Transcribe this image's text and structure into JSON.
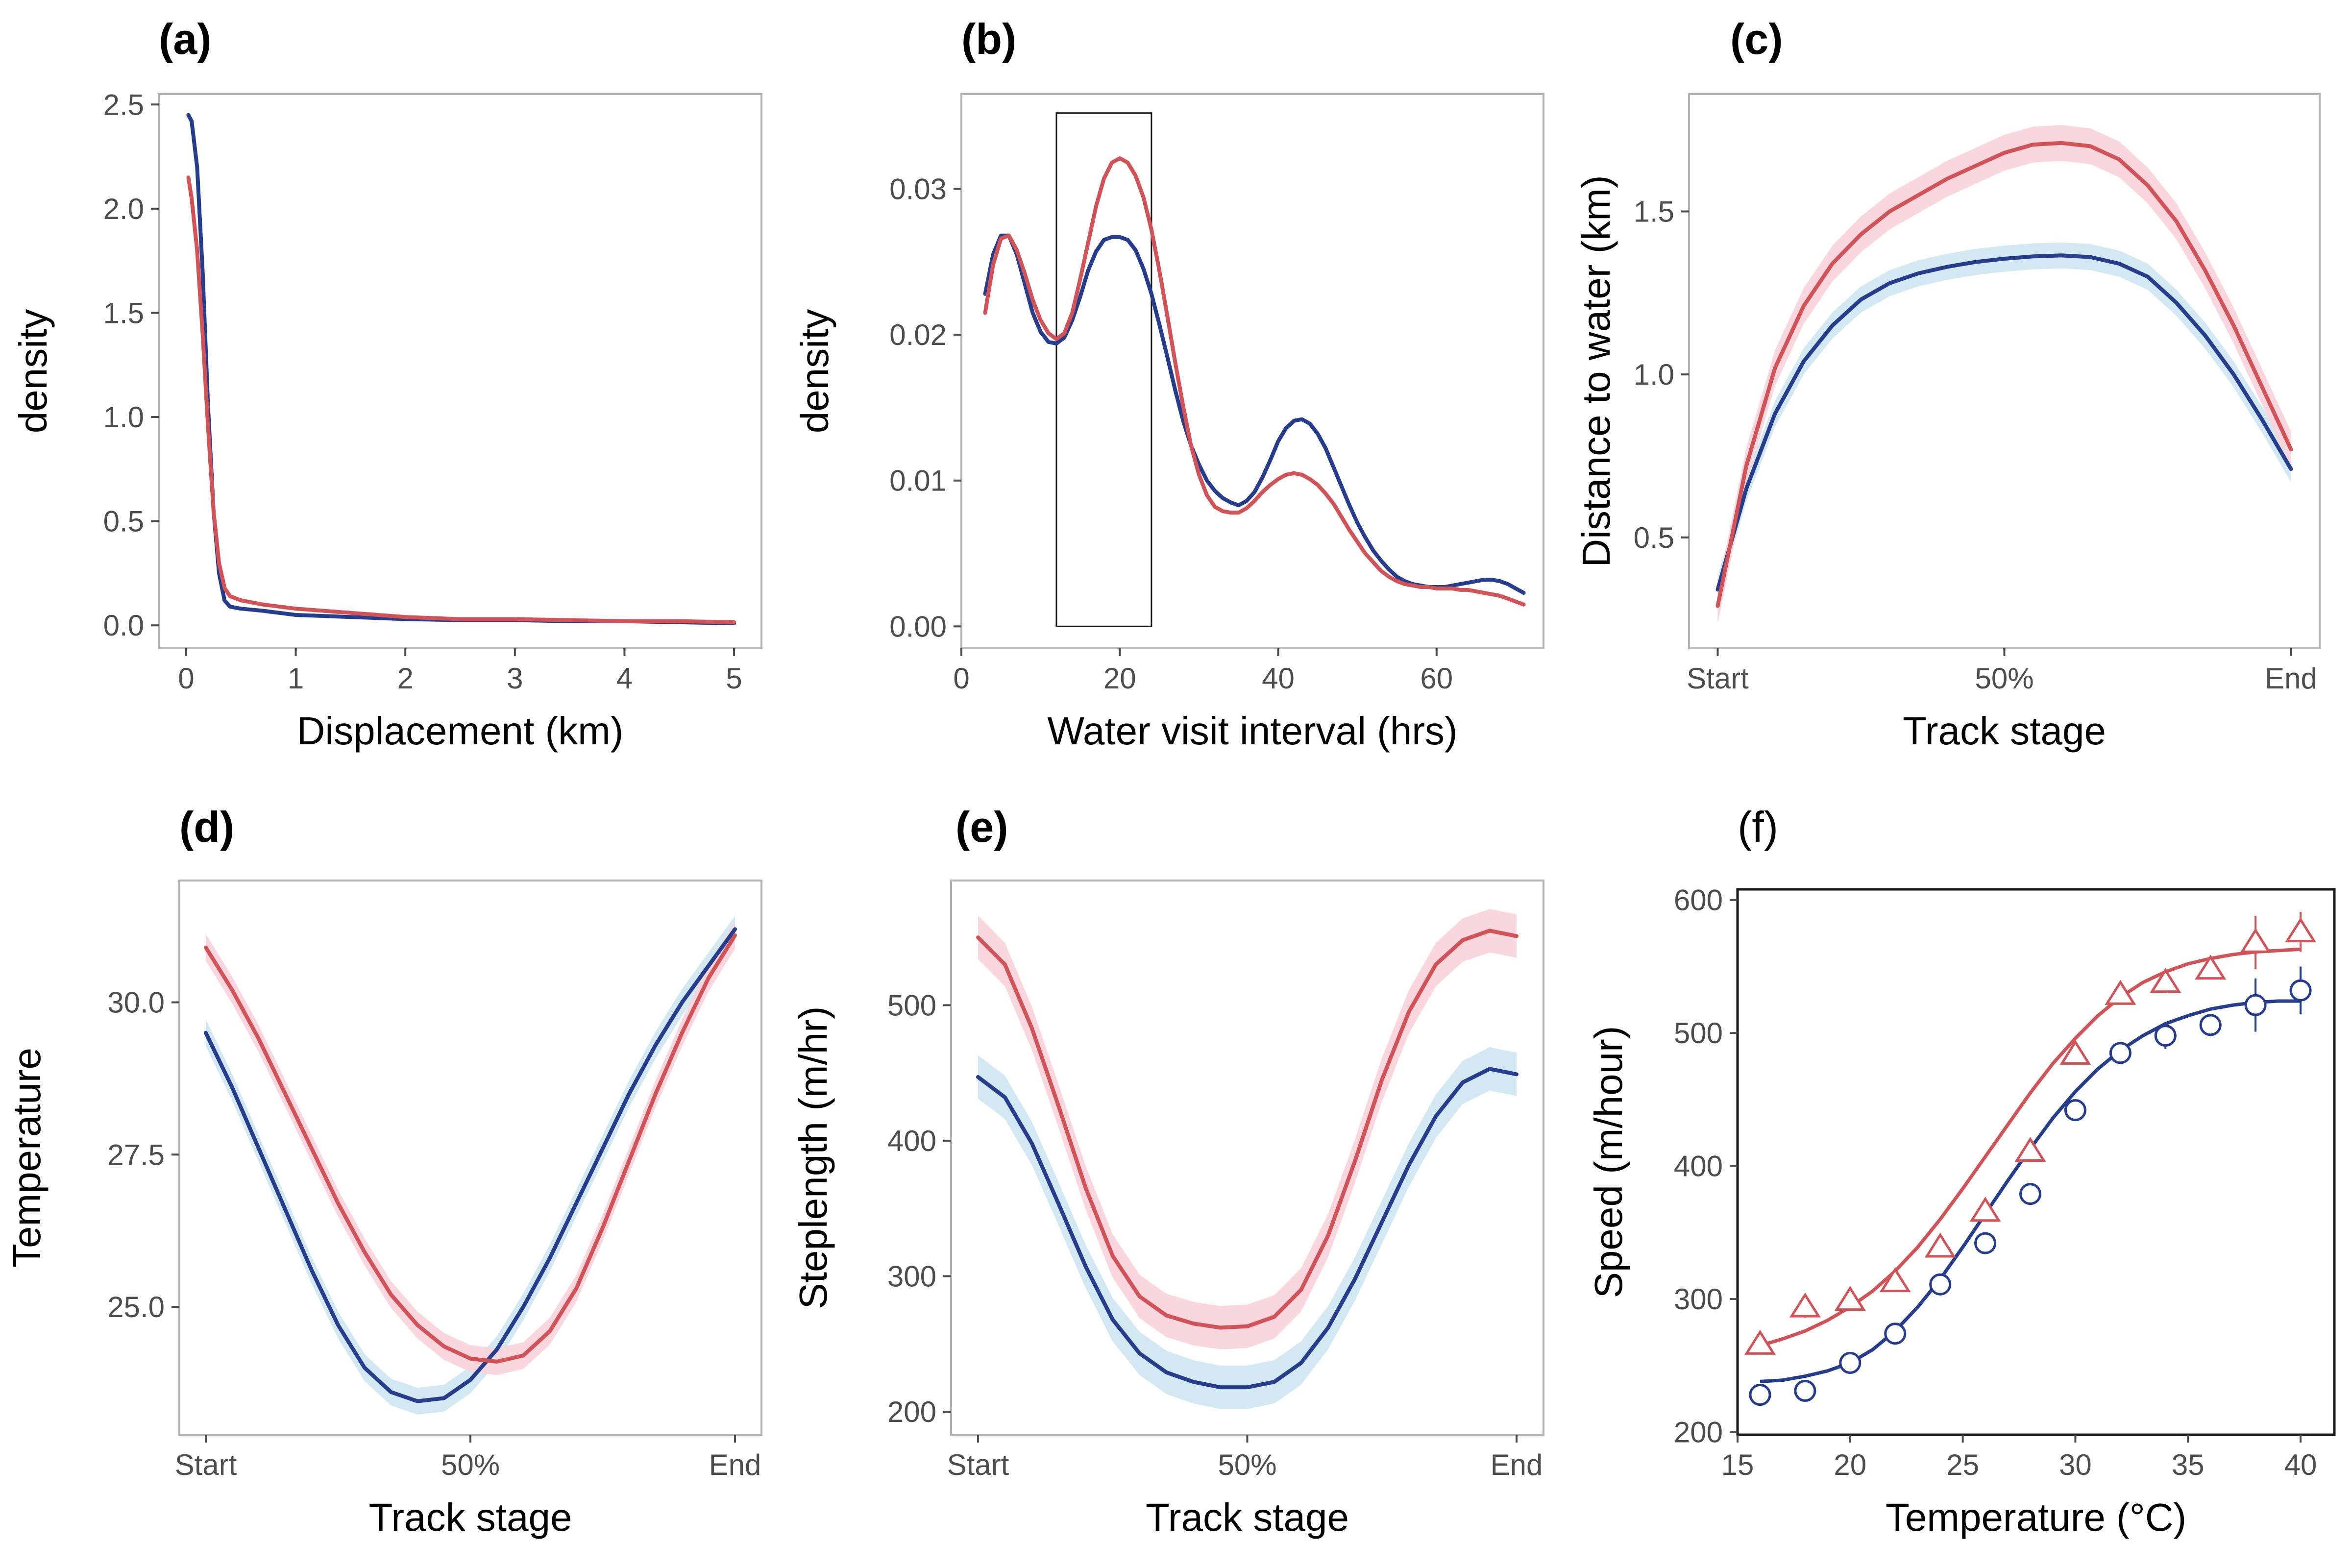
{
  "colors": {
    "blue": "#253d8c",
    "red": "#d25357",
    "blue_band": "#cde7f3",
    "red_band": "#fad3da"
  },
  "chart_data": [
    {
      "id": "a",
      "panel_label": "(a)",
      "type": "line",
      "xlabel": "Displacement (km)",
      "ylabel": "density",
      "xlim": [
        -0.25,
        5.25
      ],
      "ylim": [
        -0.11,
        2.55
      ],
      "xticks": [
        0,
        1,
        2,
        3,
        4,
        5
      ],
      "xtick_labels": [
        "0",
        "1",
        "2",
        "3",
        "4",
        "5"
      ],
      "yticks": [
        0,
        0.5,
        1,
        1.5,
        2,
        2.5
      ],
      "ytick_labels": [
        "0.0",
        "0.5",
        "1.0",
        "1.5",
        "2.0",
        "2.5"
      ],
      "series": [
        {
          "color": "blue",
          "x": [
            0.02,
            0.05,
            0.1,
            0.15,
            0.2,
            0.25,
            0.3,
            0.35,
            0.4,
            0.5,
            0.7,
            1.0,
            1.5,
            2.0,
            2.5,
            3.0,
            3.5,
            4.0,
            4.5,
            5.0
          ],
          "y": [
            2.45,
            2.42,
            2.2,
            1.7,
            1.05,
            0.55,
            0.25,
            0.12,
            0.09,
            0.08,
            0.07,
            0.05,
            0.04,
            0.03,
            0.025,
            0.025,
            0.02,
            0.02,
            0.015,
            0.01
          ]
        },
        {
          "color": "red",
          "x": [
            0.02,
            0.05,
            0.1,
            0.15,
            0.2,
            0.25,
            0.3,
            0.35,
            0.4,
            0.5,
            0.7,
            1.0,
            1.5,
            2.0,
            2.5,
            3.0,
            3.5,
            4.0,
            4.5,
            5.0
          ],
          "y": [
            2.15,
            2.05,
            1.8,
            1.4,
            0.95,
            0.55,
            0.3,
            0.18,
            0.14,
            0.12,
            0.1,
            0.08,
            0.06,
            0.04,
            0.03,
            0.03,
            0.025,
            0.02,
            0.02,
            0.015
          ]
        }
      ]
    },
    {
      "id": "b",
      "panel_label": "(b)",
      "type": "line",
      "xlabel": "Water visit interval (hrs)",
      "ylabel": "density",
      "xlim": [
        0,
        73.5
      ],
      "ylim": [
        -0.0015,
        0.0365
      ],
      "xticks": [
        0,
        20,
        40,
        60
      ],
      "xtick_labels": [
        "0",
        "20",
        "40",
        "60"
      ],
      "yticks": [
        0,
        0.01,
        0.02,
        0.03
      ],
      "ytick_labels": [
        "0.00",
        "0.01",
        "0.02",
        "0.03"
      ],
      "highlight_box": {
        "x": [
          12,
          24
        ],
        "y": [
          0,
          0.0352
        ]
      },
      "series": [
        {
          "color": "blue",
          "x": [
            3,
            4,
            5,
            6,
            7,
            8,
            9,
            10,
            11,
            12,
            13,
            14,
            15,
            16,
            17,
            18,
            19,
            20,
            21,
            22,
            23,
            24,
            25,
            26,
            27,
            28,
            29,
            30,
            31,
            32,
            33,
            34,
            35,
            36,
            37,
            38,
            39,
            40,
            41,
            42,
            43,
            44,
            45,
            46,
            47,
            48,
            49,
            50,
            51,
            52,
            53,
            54,
            55,
            56,
            57,
            58,
            59,
            60,
            61,
            62,
            63,
            64,
            65,
            66,
            67,
            68,
            69,
            70,
            71
          ],
          "y": [
            0.0228,
            0.0255,
            0.0268,
            0.0268,
            0.0255,
            0.0235,
            0.0215,
            0.0202,
            0.0195,
            0.0194,
            0.0198,
            0.021,
            0.0226,
            0.0244,
            0.0257,
            0.0265,
            0.0267,
            0.0267,
            0.0265,
            0.0258,
            0.0245,
            0.0228,
            0.0207,
            0.0185,
            0.0162,
            0.0141,
            0.0124,
            0.0111,
            0.01,
            0.0093,
            0.0088,
            0.0085,
            0.0083,
            0.0086,
            0.0092,
            0.0102,
            0.0114,
            0.0127,
            0.0136,
            0.0141,
            0.0142,
            0.0139,
            0.0132,
            0.0122,
            0.0109,
            0.0096,
            0.0083,
            0.0071,
            0.0061,
            0.0052,
            0.0045,
            0.0039,
            0.0034,
            0.0031,
            0.0029,
            0.0028,
            0.0027,
            0.0027,
            0.0027,
            0.0028,
            0.0029,
            0.003,
            0.0031,
            0.0032,
            0.0032,
            0.0031,
            0.0029,
            0.0026,
            0.0023
          ]
        },
        {
          "color": "red",
          "x": [
            3,
            4,
            5,
            6,
            7,
            8,
            9,
            10,
            11,
            12,
            13,
            14,
            15,
            16,
            17,
            18,
            19,
            20,
            21,
            22,
            23,
            24,
            25,
            26,
            27,
            28,
            29,
            30,
            31,
            32,
            33,
            34,
            35,
            36,
            37,
            38,
            39,
            40,
            41,
            42,
            43,
            44,
            45,
            46,
            47,
            48,
            49,
            50,
            51,
            52,
            53,
            54,
            55,
            56,
            57,
            58,
            59,
            60,
            61,
            62,
            63,
            64,
            65,
            66,
            67,
            68,
            69,
            70,
            71
          ],
          "y": [
            0.0215,
            0.0248,
            0.0266,
            0.0268,
            0.0258,
            0.0242,
            0.0224,
            0.021,
            0.0201,
            0.0197,
            0.0201,
            0.0215,
            0.0238,
            0.0263,
            0.0288,
            0.0307,
            0.0318,
            0.0321,
            0.0318,
            0.0309,
            0.0294,
            0.0272,
            0.0244,
            0.0213,
            0.0181,
            0.0151,
            0.0124,
            0.0104,
            0.009,
            0.0082,
            0.0079,
            0.0078,
            0.0078,
            0.0081,
            0.0086,
            0.0092,
            0.0097,
            0.0101,
            0.0104,
            0.0105,
            0.0104,
            0.0101,
            0.0097,
            0.0091,
            0.0084,
            0.0075,
            0.0066,
            0.0058,
            0.005,
            0.0044,
            0.0038,
            0.0034,
            0.0031,
            0.0029,
            0.0028,
            0.0027,
            0.0027,
            0.0026,
            0.0026,
            0.0026,
            0.0025,
            0.0025,
            0.0024,
            0.0023,
            0.0022,
            0.0021,
            0.0019,
            0.0017,
            0.0015
          ]
        }
      ]
    },
    {
      "id": "c",
      "panel_label": "(c)",
      "type": "line",
      "xlabel": "Track stage",
      "ylabel": "Distance to water (km)",
      "xlim": [
        -0.05,
        1.05
      ],
      "ylim": [
        0.16,
        1.86
      ],
      "xticks": [
        0,
        0.5,
        1
      ],
      "xtick_labels": [
        "Start",
        "50%",
        "End"
      ],
      "yticks": [
        0.5,
        1.0,
        1.5
      ],
      "ytick_labels": [
        "0.5",
        "1.0",
        "1.5"
      ],
      "series": [
        {
          "color": "blue",
          "band_color": "blue_band",
          "band_halfwidth": 0.04,
          "x": [
            0,
            0.05,
            0.1,
            0.15,
            0.2,
            0.25,
            0.3,
            0.35,
            0.4,
            0.45,
            0.5,
            0.55,
            0.6,
            0.65,
            0.7,
            0.75,
            0.8,
            0.85,
            0.9,
            0.95,
            1.0
          ],
          "y": [
            0.34,
            0.65,
            0.88,
            1.04,
            1.15,
            1.23,
            1.28,
            1.31,
            1.33,
            1.345,
            1.355,
            1.362,
            1.365,
            1.36,
            1.34,
            1.3,
            1.22,
            1.12,
            1.0,
            0.86,
            0.71
          ]
        },
        {
          "color": "red",
          "band_color": "red_band",
          "band_halfwidth": 0.055,
          "x": [
            0,
            0.05,
            0.1,
            0.15,
            0.2,
            0.25,
            0.3,
            0.35,
            0.4,
            0.45,
            0.5,
            0.55,
            0.6,
            0.65,
            0.7,
            0.75,
            0.8,
            0.85,
            0.9,
            0.95,
            1.0
          ],
          "y": [
            0.29,
            0.72,
            1.02,
            1.21,
            1.34,
            1.43,
            1.5,
            1.55,
            1.6,
            1.64,
            1.68,
            1.705,
            1.71,
            1.7,
            1.66,
            1.58,
            1.47,
            1.32,
            1.15,
            0.96,
            0.77
          ]
        }
      ]
    },
    {
      "id": "d",
      "panel_label": "(d)",
      "type": "line",
      "xlabel": "Track stage",
      "ylabel": "Temperature",
      "xlim": [
        -0.05,
        1.05
      ],
      "ylim": [
        22.9,
        32.0
      ],
      "xticks": [
        0,
        0.5,
        1
      ],
      "xtick_labels": [
        "Start",
        "50%",
        "End"
      ],
      "yticks": [
        25.0,
        27.5,
        30.0
      ],
      "ytick_labels": [
        "25.0",
        "27.5",
        "30.0"
      ],
      "series": [
        {
          "color": "blue",
          "band_color": "blue_band",
          "band_halfwidth": 0.22,
          "x": [
            0,
            0.05,
            0.1,
            0.15,
            0.2,
            0.25,
            0.3,
            0.35,
            0.4,
            0.45,
            0.5,
            0.55,
            0.6,
            0.65,
            0.7,
            0.75,
            0.8,
            0.85,
            0.9,
            0.95,
            1.0
          ],
          "y": [
            29.5,
            28.6,
            27.6,
            26.6,
            25.6,
            24.7,
            24.0,
            23.6,
            23.45,
            23.5,
            23.8,
            24.3,
            25.0,
            25.8,
            26.7,
            27.6,
            28.5,
            29.3,
            30.0,
            30.6,
            31.2
          ]
        },
        {
          "color": "red",
          "band_color": "red_band",
          "band_halfwidth": 0.22,
          "x": [
            0,
            0.05,
            0.1,
            0.15,
            0.2,
            0.25,
            0.3,
            0.35,
            0.4,
            0.45,
            0.5,
            0.55,
            0.6,
            0.65,
            0.7,
            0.75,
            0.8,
            0.85,
            0.9,
            0.95,
            1.0
          ],
          "y": [
            30.9,
            30.2,
            29.4,
            28.5,
            27.6,
            26.7,
            25.9,
            25.2,
            24.7,
            24.35,
            24.15,
            24.1,
            24.2,
            24.6,
            25.3,
            26.3,
            27.4,
            28.5,
            29.5,
            30.4,
            31.1
          ]
        }
      ]
    },
    {
      "id": "e",
      "panel_label": "(e)",
      "type": "line",
      "xlabel": "Track stage",
      "ylabel": "Steplength (m/hr)",
      "xlim": [
        -0.05,
        1.05
      ],
      "ylim": [
        183,
        592
      ],
      "xticks": [
        0,
        0.5,
        1
      ],
      "xtick_labels": [
        "Start",
        "50%",
        "End"
      ],
      "yticks": [
        200,
        300,
        400,
        500
      ],
      "ytick_labels": [
        "200",
        "300",
        "400",
        "500"
      ],
      "series": [
        {
          "color": "blue",
          "band_color": "blue_band",
          "band_halfwidth": 16,
          "x": [
            0,
            0.05,
            0.1,
            0.15,
            0.2,
            0.25,
            0.3,
            0.35,
            0.4,
            0.45,
            0.5,
            0.55,
            0.6,
            0.65,
            0.7,
            0.75,
            0.8,
            0.85,
            0.9,
            0.95,
            1.0
          ],
          "y": [
            447,
            432,
            398,
            353,
            307,
            268,
            243,
            229,
            222,
            218,
            218,
            222,
            236,
            262,
            298,
            340,
            382,
            418,
            443,
            453,
            449
          ]
        },
        {
          "color": "red",
          "band_color": "red_band",
          "band_halfwidth": 16,
          "x": [
            0,
            0.05,
            0.1,
            0.15,
            0.2,
            0.25,
            0.3,
            0.35,
            0.4,
            0.45,
            0.5,
            0.55,
            0.6,
            0.65,
            0.7,
            0.75,
            0.8,
            0.85,
            0.9,
            0.95,
            1.0
          ],
          "y": [
            550,
            530,
            483,
            425,
            365,
            315,
            285,
            271,
            265,
            262,
            263,
            270,
            290,
            330,
            385,
            445,
            495,
            530,
            548,
            555,
            551
          ]
        }
      ]
    },
    {
      "id": "f",
      "panel_label": "(f)",
      "type": "scatter",
      "xlabel": "Temperature (°C)",
      "ylabel": "Speed (m/hour)",
      "xlim": [
        15,
        41.5
      ],
      "ylim": [
        198,
        608
      ],
      "xticks": [
        15,
        20,
        25,
        30,
        35,
        40
      ],
      "xtick_labels": [
        "15",
        "20",
        "25",
        "30",
        "35",
        "40"
      ],
      "yticks": [
        200,
        300,
        400,
        500,
        600
      ],
      "ytick_labels": [
        "200",
        "300",
        "400",
        "500",
        "600"
      ],
      "series": [
        {
          "color": "blue",
          "marker": "circle",
          "x": [
            16,
            18,
            20,
            22,
            24,
            26,
            28,
            30,
            32,
            34,
            36,
            38,
            40
          ],
          "y": [
            228,
            231,
            252,
            274,
            311,
            342,
            379,
            442,
            485,
            498,
            506,
            521,
            532
          ],
          "err": [
            3,
            8,
            5,
            6,
            5,
            6,
            6,
            6,
            6,
            10,
            6,
            20,
            18
          ],
          "fit_x": [
            16,
            17,
            18,
            19,
            20,
            21,
            22,
            23,
            24,
            25,
            26,
            27,
            28,
            29,
            30,
            31,
            32,
            33,
            34,
            35,
            36,
            37,
            38,
            39,
            40
          ],
          "fit_y": [
            238,
            239,
            242,
            246,
            252,
            262,
            276,
            294,
            315,
            339,
            364,
            389,
            413,
            436,
            456,
            473,
            487,
            498,
            507,
            513,
            518,
            521,
            523,
            524,
            524
          ]
        },
        {
          "color": "red",
          "marker": "triangle",
          "x": [
            16,
            18,
            20,
            22,
            24,
            26,
            28,
            30,
            32,
            34,
            36,
            38,
            40
          ],
          "y": [
            266,
            294,
            299,
            313,
            339,
            366,
            411,
            484,
            529,
            538,
            548,
            568,
            576
          ],
          "err": [
            3,
            8,
            4,
            5,
            5,
            6,
            6,
            6,
            6,
            8,
            6,
            20,
            15
          ],
          "fit_x": [
            16,
            17,
            18,
            19,
            20,
            21,
            22,
            23,
            24,
            25,
            26,
            27,
            28,
            29,
            30,
            31,
            32,
            33,
            34,
            35,
            36,
            37,
            38,
            39,
            40
          ],
          "fit_y": [
            265,
            270,
            276,
            284,
            294,
            306,
            321,
            339,
            360,
            383,
            407,
            431,
            455,
            477,
            496,
            513,
            527,
            538,
            546,
            552,
            556,
            559,
            561,
            562,
            563
          ]
        }
      ]
    }
  ]
}
